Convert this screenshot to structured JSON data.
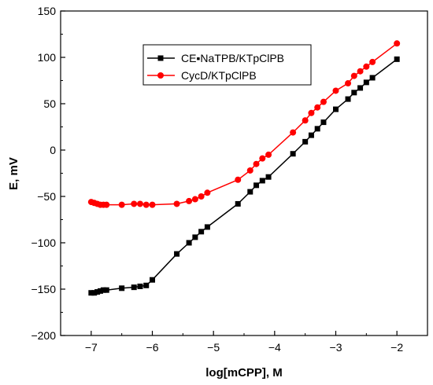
{
  "chart_data": {
    "type": "line",
    "title": "",
    "xlabel": "log[mCPP], M",
    "ylabel": "E, mV",
    "xlim": [
      -7.5,
      -1.5
    ],
    "ylim": [
      -200,
      150
    ],
    "xticks": [
      -7,
      -6,
      -5,
      -4,
      -3,
      -2
    ],
    "yticks": [
      -200,
      -150,
      -100,
      -50,
      0,
      50,
      100,
      150
    ],
    "grid": false,
    "legend_position": "top-center",
    "series": [
      {
        "name": "CE▪NaTPB/KTpClPB",
        "color": "#000000",
        "marker": "square",
        "x": [
          -7.0,
          -6.95,
          -6.9,
          -6.85,
          -6.8,
          -6.75,
          -6.5,
          -6.3,
          -6.2,
          -6.1,
          -6.0,
          -5.6,
          -5.4,
          -5.3,
          -5.2,
          -5.1,
          -4.6,
          -4.4,
          -4.3,
          -4.2,
          -4.1,
          -3.7,
          -3.5,
          -3.4,
          -3.3,
          -3.2,
          -3.0,
          -2.8,
          -2.7,
          -2.6,
          -2.5,
          -2.4,
          -2.0
        ],
        "y": [
          -154,
          -154,
          -153,
          -152,
          -151,
          -151,
          -149,
          -148,
          -147,
          -146,
          -140,
          -112,
          -100,
          -94,
          -88,
          -83,
          -58,
          -45,
          -38,
          -33,
          -29,
          -4,
          9,
          16,
          23,
          30,
          44,
          55,
          62,
          67,
          73,
          78,
          98
        ]
      },
      {
        "name": "CycD/KTpClPB",
        "color": "#ff0000",
        "marker": "circle",
        "x": [
          -7.0,
          -6.95,
          -6.9,
          -6.85,
          -6.8,
          -6.75,
          -6.5,
          -6.3,
          -6.2,
          -6.1,
          -6.0,
          -5.6,
          -5.4,
          -5.3,
          -5.2,
          -5.1,
          -4.6,
          -4.4,
          -4.3,
          -4.2,
          -4.1,
          -3.7,
          -3.5,
          -3.4,
          -3.3,
          -3.2,
          -3.0,
          -2.8,
          -2.7,
          -2.6,
          -2.5,
          -2.4,
          -2.0
        ],
        "y": [
          -56,
          -57,
          -58,
          -59,
          -59,
          -59,
          -59,
          -58,
          -58,
          -59,
          -59,
          -58,
          -55,
          -53,
          -50,
          -46,
          -32,
          -22,
          -15,
          -9,
          -5,
          19,
          32,
          40,
          46,
          52,
          64,
          72,
          80,
          85,
          90,
          95,
          115
        ]
      }
    ]
  }
}
